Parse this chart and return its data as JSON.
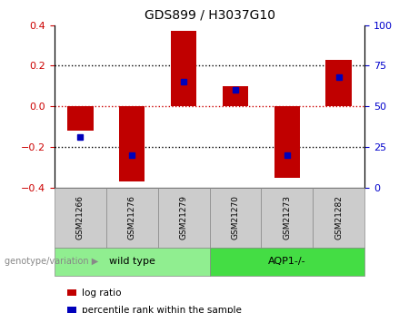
{
  "title": "GDS899 / H3037G10",
  "samples": [
    "GSM21266",
    "GSM21276",
    "GSM21279",
    "GSM21270",
    "GSM21273",
    "GSM21282"
  ],
  "log_ratios": [
    -0.12,
    -0.37,
    0.37,
    0.1,
    -0.35,
    0.23
  ],
  "percentile_ranks": [
    31,
    20,
    65,
    60,
    20,
    68
  ],
  "ylim_left": [
    -0.4,
    0.4
  ],
  "ylim_right": [
    0,
    100
  ],
  "groups": [
    {
      "label": "wild type",
      "indices": [
        0,
        1,
        2
      ],
      "color": "#90EE90"
    },
    {
      "label": "AQP1-/-",
      "indices": [
        3,
        4,
        5
      ],
      "color": "#44DD44"
    }
  ],
  "group_label_prefix": "genotype/variation",
  "bar_color": "#C00000",
  "percentile_color": "#0000BB",
  "bar_width": 0.5,
  "tick_label_color_left": "#CC0000",
  "tick_label_color_right": "#0000CC",
  "dotted_line_color": "#000000",
  "zero_line_color": "#CC0000",
  "sample_box_color": "#CCCCCC",
  "legend_bar_label": "log ratio",
  "legend_pct_label": "percentile rank within the sample",
  "n_samples": 6
}
